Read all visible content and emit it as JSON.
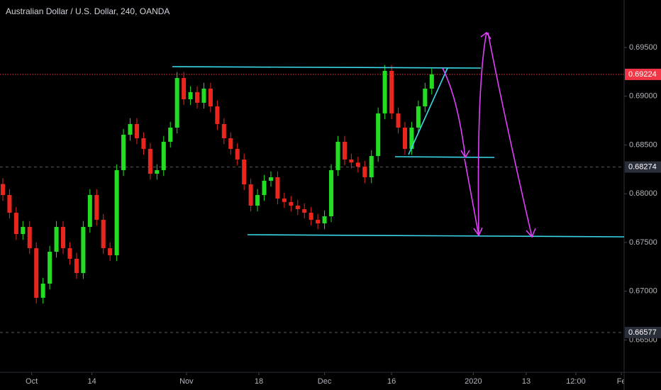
{
  "chart_data": {
    "type": "candlestick",
    "title": "Australian Dollar / U.S. Dollar, 240, OANDA",
    "up_color": "#22dd22",
    "down_color": "#e8261e",
    "open": [
      0.681,
      0.67987,
      0.67805,
      0.67587,
      0.6766,
      0.67442,
      0.66933,
      0.67078,
      0.67405,
      0.6766,
      0.67442,
      0.67333,
      0.67187,
      0.6766,
      0.67987,
      0.67733,
      0.67442,
      0.67369,
      0.68242,
      0.68605,
      0.68715,
      0.68569,
      0.6846,
      0.68205,
      0.68242,
      0.68533,
      0.68678,
      0.69187,
      0.68969,
      0.69042,
      0.68933,
      0.69078,
      0.68896,
      0.68715,
      0.68569,
      0.6846,
      0.68351,
      0.68096,
      0.67878,
      0.67987,
      0.68133,
      0.68169,
      0.67951,
      0.67915,
      0.67878,
      0.67842,
      0.67805,
      0.67733,
      0.67696,
      0.67769,
      0.68242,
      0.68533,
      0.68351,
      0.6832,
      0.68278,
      0.68169,
      0.68387,
      0.68824,
      0.6926,
      0.68824,
      0.68678,
      0.6846,
      0.68678,
      0.68896,
      0.69078
    ],
    "high": [
      0.6816,
      0.68047,
      0.67865,
      0.6772,
      0.6772,
      0.67502,
      0.67138,
      0.67465,
      0.6772,
      0.6772,
      0.67502,
      0.67393,
      0.6772,
      0.68047,
      0.68047,
      0.67793,
      0.67502,
      0.68302,
      0.68665,
      0.68775,
      0.68775,
      0.68629,
      0.6852,
      0.68302,
      0.68593,
      0.68738,
      0.69247,
      0.69247,
      0.69102,
      0.69102,
      0.69138,
      0.69138,
      0.68956,
      0.68775,
      0.68629,
      0.6852,
      0.68411,
      0.68156,
      0.68047,
      0.68193,
      0.68229,
      0.68229,
      0.68011,
      0.67975,
      0.67938,
      0.67902,
      0.67865,
      0.67793,
      0.67829,
      0.68302,
      0.68593,
      0.68593,
      0.68411,
      0.6838,
      0.68338,
      0.68447,
      0.68884,
      0.6932,
      0.6932,
      0.68884,
      0.68738,
      0.68738,
      0.68956,
      0.69138,
      0.69284
    ],
    "low": [
      0.67927,
      0.67745,
      0.67527,
      0.67527,
      0.67382,
      0.66873,
      0.66873,
      0.67018,
      0.67345,
      0.67382,
      0.67273,
      0.67127,
      0.67127,
      0.676,
      0.67673,
      0.67382,
      0.67309,
      0.67309,
      0.68182,
      0.68545,
      0.68509,
      0.684,
      0.68145,
      0.68145,
      0.68182,
      0.68473,
      0.68618,
      0.68909,
      0.68909,
      0.68873,
      0.68873,
      0.68836,
      0.68655,
      0.68509,
      0.684,
      0.68291,
      0.68036,
      0.67818,
      0.67818,
      0.67927,
      0.68073,
      0.67891,
      0.67855,
      0.67818,
      0.67782,
      0.67745,
      0.67673,
      0.67636,
      0.67636,
      0.67709,
      0.68182,
      0.68291,
      0.6826,
      0.68218,
      0.68109,
      0.68109,
      0.68327,
      0.68764,
      0.68764,
      0.68618,
      0.684,
      0.684,
      0.68618,
      0.68836,
      0.69018
    ],
    "close": [
      0.67987,
      0.67805,
      0.67587,
      0.6766,
      0.67442,
      0.66933,
      0.67078,
      0.67405,
      0.6766,
      0.67442,
      0.67333,
      0.67187,
      0.6766,
      0.67987,
      0.67733,
      0.67442,
      0.67369,
      0.68242,
      0.68605,
      0.68715,
      0.68569,
      0.6846,
      0.68205,
      0.68242,
      0.68533,
      0.68678,
      0.69187,
      0.68969,
      0.69042,
      0.68933,
      0.69078,
      0.68896,
      0.68715,
      0.68569,
      0.6846,
      0.68351,
      0.68096,
      0.67878,
      0.67987,
      0.68133,
      0.68169,
      0.67951,
      0.67915,
      0.67878,
      0.67842,
      0.67805,
      0.67733,
      0.67696,
      0.67769,
      0.68242,
      0.68533,
      0.68351,
      0.6832,
      0.68278,
      0.68169,
      0.68387,
      0.68824,
      0.6926,
      0.68824,
      0.68678,
      0.6846,
      0.68678,
      0.68896,
      0.69078,
      0.69224
    ],
    "xlim": [
      -0.42,
      92.7
    ],
    "xticks": [
      {
        "value": 4.3,
        "label": "Oct"
      },
      {
        "value": 13.3,
        "label": "14"
      },
      {
        "value": 27.4,
        "label": "Nov"
      },
      {
        "value": 38.2,
        "label": "18"
      },
      {
        "value": 48,
        "label": "Dec"
      },
      {
        "value": 58,
        "label": "16"
      },
      {
        "value": 70.2,
        "label": "2020"
      },
      {
        "value": 78.1,
        "label": "13"
      },
      {
        "value": 85.5,
        "label": "12:00"
      },
      {
        "value": 92.3,
        "label": "Fe"
      }
    ],
    "ylim": [
      0.66169,
      0.69987
    ],
    "yticks": [
      {
        "value": 0.665,
        "label": "0.66500"
      },
      {
        "value": 0.67,
        "label": "0.67000"
      },
      {
        "value": 0.675,
        "label": "0.67500"
      },
      {
        "value": 0.68,
        "label": "0.68000"
      },
      {
        "value": 0.685,
        "label": "0.68500"
      },
      {
        "value": 0.69,
        "label": "0.69000"
      },
      {
        "value": 0.695,
        "label": "0.69500"
      }
    ],
    "price_lines": [
      {
        "value": 0.69224,
        "color": "#f23645"
      },
      {
        "value": 0.68274,
        "color": "#2a2e39"
      },
      {
        "value": 0.66577,
        "color": "#2a2e39"
      }
    ]
  }
}
